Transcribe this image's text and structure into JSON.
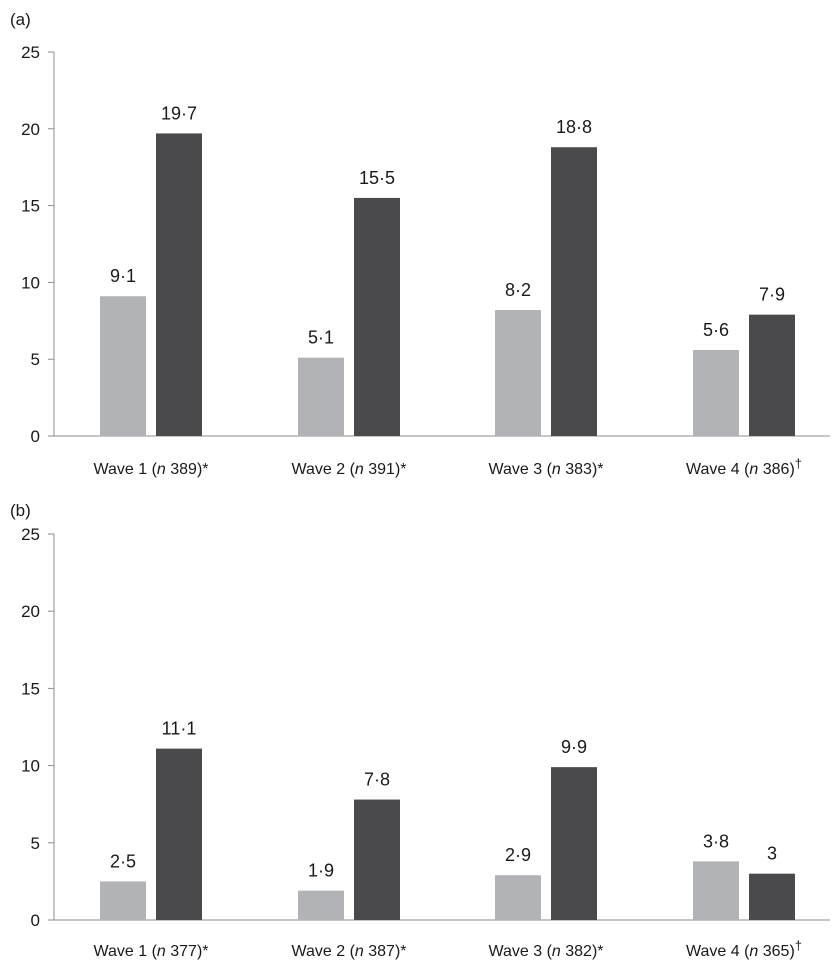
{
  "colors": {
    "light": "#b1b3b6",
    "dark": "#4a4a4c",
    "axis": "#8c8c8c"
  },
  "chart_data": [
    {
      "type": "bar",
      "panel_label": "(a)",
      "ylim": [
        0,
        25
      ],
      "yticks": [
        "0",
        "5",
        "10",
        "15",
        "20",
        "25"
      ],
      "categories": [
        {
          "pre": "Wave 1 (",
          "n": "n",
          "post": " 389)",
          "mark": "*"
        },
        {
          "pre": "Wave 2 (",
          "n": "n",
          "post": " 391)",
          "mark": "*"
        },
        {
          "pre": "Wave 3 (",
          "n": "n",
          "post": " 383)",
          "mark": "*"
        },
        {
          "pre": "Wave 4 (",
          "n": "n",
          "post": " 386)",
          "mark": "†"
        }
      ],
      "series": [
        {
          "values": [
            9.1,
            5.1,
            8.2,
            5.6
          ],
          "labels": [
            "9·1",
            "5·1",
            "8·2",
            "5·6"
          ]
        },
        {
          "values": [
            19.7,
            15.5,
            18.8,
            7.9
          ],
          "labels": [
            "19·7",
            "15·5",
            "18·8",
            "7·9"
          ]
        }
      ]
    },
    {
      "type": "bar",
      "panel_label": "(b)",
      "ylim": [
        0,
        25
      ],
      "yticks": [
        "0",
        "5",
        "10",
        "15",
        "20",
        "25"
      ],
      "categories": [
        {
          "pre": "Wave 1 (",
          "n": "n",
          "post": " 377)",
          "mark": "*"
        },
        {
          "pre": "Wave 2 (",
          "n": "n",
          "post": " 387)",
          "mark": "*"
        },
        {
          "pre": "Wave 3 (",
          "n": "n",
          "post": " 382)",
          "mark": "*"
        },
        {
          "pre": "Wave 4 (",
          "n": "n",
          "post": " 365)",
          "mark": "†"
        }
      ],
      "series": [
        {
          "values": [
            2.5,
            1.9,
            2.9,
            3.8
          ],
          "labels": [
            "2·5",
            "1·9",
            "2·9",
            "3·8"
          ]
        },
        {
          "values": [
            11.1,
            7.8,
            9.9,
            3.0
          ],
          "labels": [
            "11·1",
            "7·8",
            "9·9",
            "3"
          ]
        }
      ]
    }
  ]
}
